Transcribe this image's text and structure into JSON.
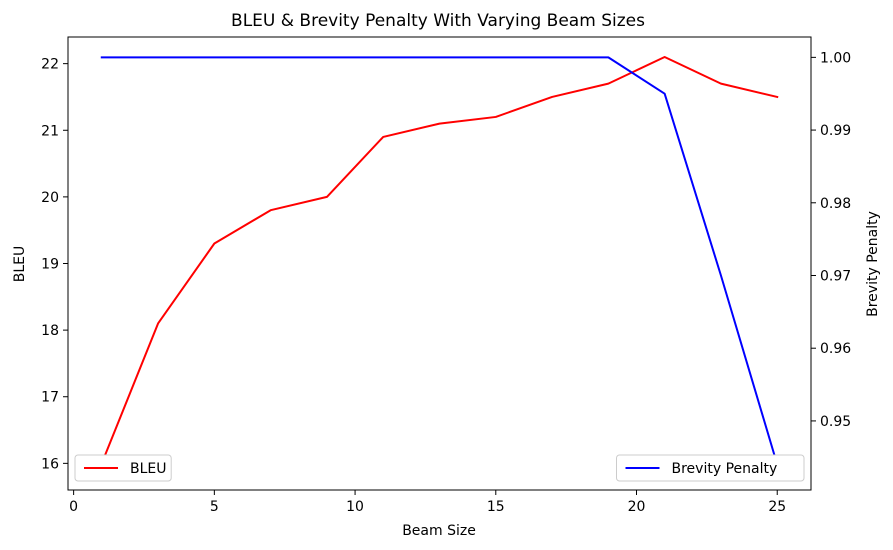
{
  "chart_data": {
    "type": "line",
    "title": "BLEU & Brevity Penalty With Varying Beam Sizes",
    "xlabel": "Beam Size",
    "x": [
      1,
      3,
      5,
      7,
      9,
      11,
      13,
      15,
      17,
      19,
      21,
      23,
      25
    ],
    "xlim": [
      -0.2,
      26.2
    ],
    "xticks": [
      0,
      5,
      10,
      15,
      20,
      25
    ],
    "grid": false,
    "series": [
      {
        "name": "BLEU",
        "axis": "left",
        "color": "#ff0000",
        "values": [
          16.0,
          18.1,
          19.3,
          19.8,
          20.0,
          20.9,
          21.1,
          21.2,
          21.5,
          21.7,
          22.1,
          21.7,
          21.5
        ]
      },
      {
        "name": "Brevity Penalty",
        "axis": "right",
        "color": "#0000ff",
        "values": [
          1.0,
          1.0,
          1.0,
          1.0,
          1.0,
          1.0,
          1.0,
          1.0,
          1.0,
          1.0,
          0.995,
          0.97,
          0.944
        ]
      }
    ],
    "y_left": {
      "label": "BLEU",
      "lim": [
        15.6,
        22.4
      ],
      "ticks": [
        16,
        17,
        18,
        19,
        20,
        21,
        22
      ]
    },
    "y_right": {
      "label": "Brevity Penalty",
      "lim": [
        0.9405,
        1.0028
      ],
      "ticks": [
        0.95,
        0.96,
        0.97,
        0.98,
        0.99,
        1.0
      ],
      "tick_labels": [
        "0.95",
        "0.96",
        "0.97",
        "0.98",
        "0.99",
        "1.00"
      ]
    },
    "legends": [
      {
        "series": "BLEU",
        "placement": "lower-left"
      },
      {
        "series": "Brevity Penalty",
        "placement": "lower-right"
      }
    ]
  }
}
